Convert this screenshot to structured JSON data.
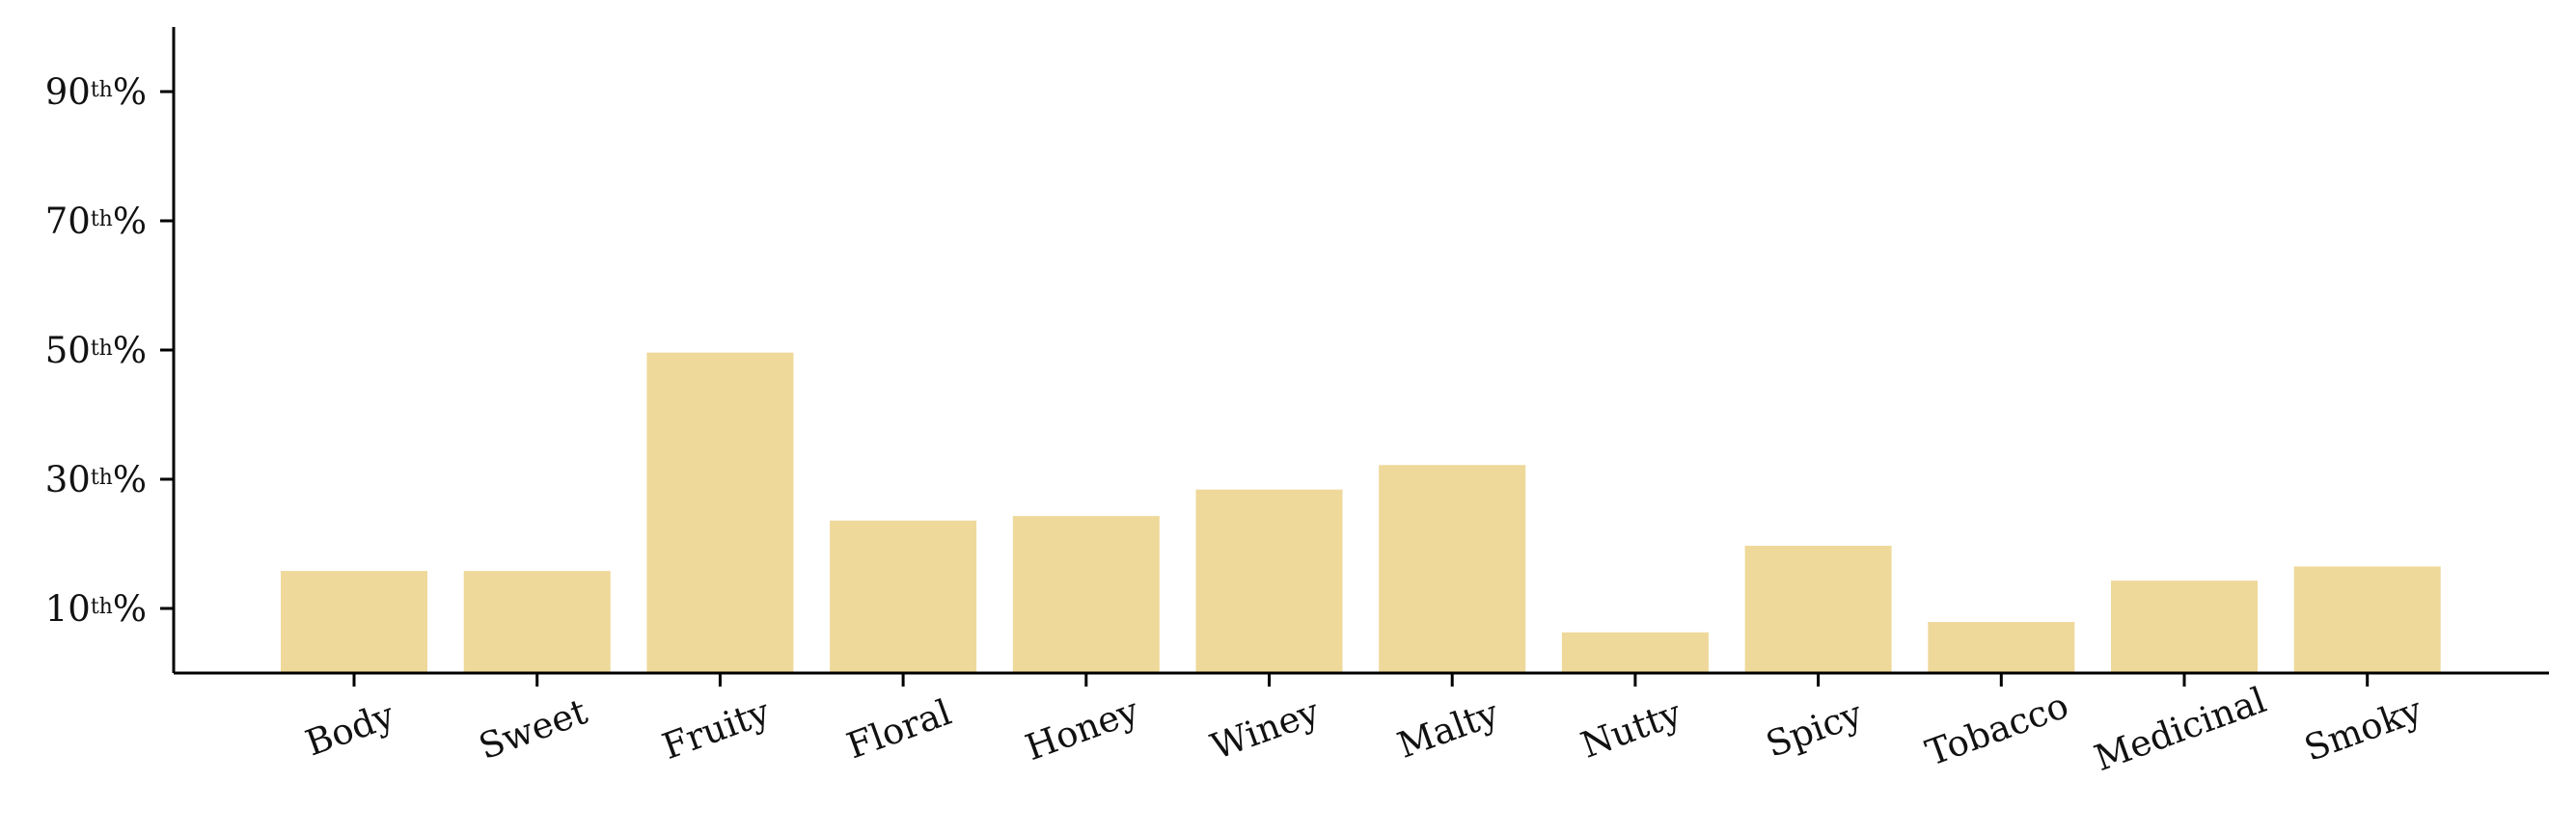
{
  "chart_data": {
    "type": "bar",
    "categories": [
      "Body",
      "Sweet",
      "Fruity",
      "Floral",
      "Honey",
      "Winey",
      "Malty",
      "Nutty",
      "Spicy",
      "Tobacco",
      "Medicinal",
      "Smoky"
    ],
    "values": [
      15.8,
      15.8,
      49.6,
      23.6,
      24.3,
      28.4,
      32.2,
      6.3,
      19.7,
      7.9,
      14.3,
      16.5
    ],
    "ylim": [
      0,
      100
    ],
    "yticks": [
      {
        "value": 10,
        "num": "10",
        "sup": "th",
        "suffix": "%"
      },
      {
        "value": 30,
        "num": "30",
        "sup": "th",
        "suffix": "%"
      },
      {
        "value": 50,
        "num": "50",
        "sup": "th",
        "suffix": "%"
      },
      {
        "value": 70,
        "num": "70",
        "sup": "th",
        "suffix": "%"
      },
      {
        "value": 90,
        "num": "90",
        "sup": "th",
        "suffix": "%"
      }
    ],
    "bar_color": "#eed99a",
    "grid": false,
    "xtick_rotation_deg": -20
  }
}
